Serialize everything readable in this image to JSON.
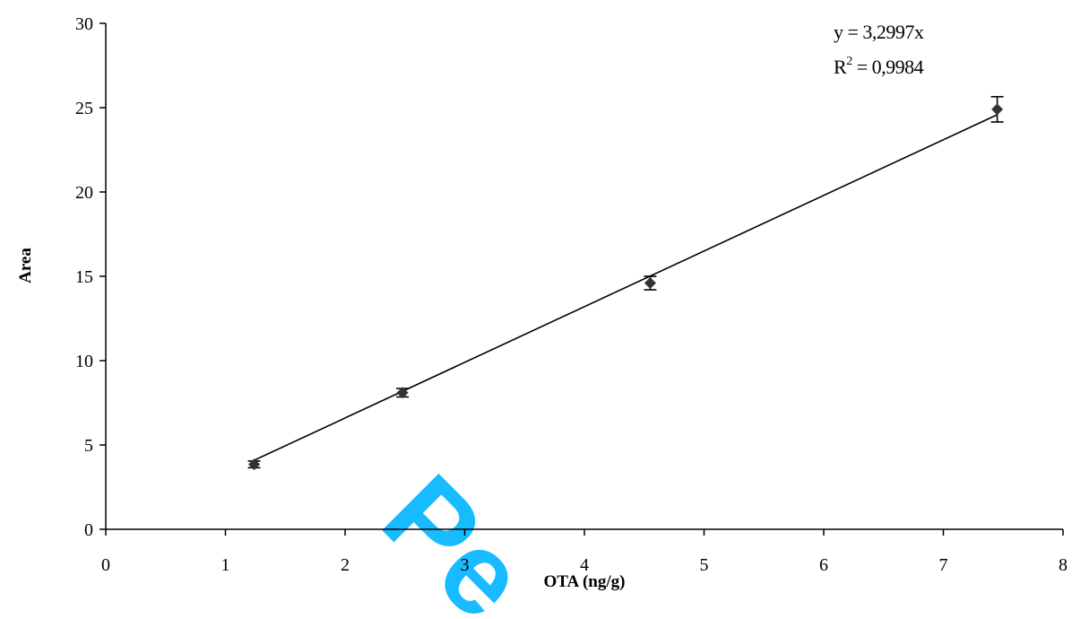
{
  "chart_data": {
    "type": "scatter",
    "xlabel": "OTA (ng/g)",
    "ylabel": "Area",
    "xlim": [
      0,
      8
    ],
    "ylim": [
      0,
      30
    ],
    "x_ticks": [
      "0",
      "1",
      "2",
      "3",
      "4",
      "5",
      "6",
      "7",
      "8"
    ],
    "y_ticks": [
      "0",
      "5",
      "10",
      "15",
      "20",
      "25",
      "30"
    ],
    "grid": false,
    "legend": "none",
    "series": [
      {
        "points": [
          {
            "x": 1.24,
            "y": 3.85,
            "err": 0.2
          },
          {
            "x": 2.48,
            "y": 8.1,
            "err": 0.25
          },
          {
            "x": 4.55,
            "y": 14.6,
            "err": 0.4
          },
          {
            "x": 7.45,
            "y": 24.9,
            "err": 0.75
          }
        ],
        "trendline": {
          "slope": 3.2997,
          "intercept": 0,
          "x_from": 1.24,
          "x_to": 7.45
        }
      }
    ],
    "annotations": {
      "equation": "y = 3,2997x",
      "r2_base": "R",
      "r2_exp": "2",
      "r2_value": " = 0,9984"
    },
    "watermark": "Pe",
    "colors": {
      "marker": "#333333",
      "line": "#000000",
      "watermark": "#00b4ff"
    }
  }
}
